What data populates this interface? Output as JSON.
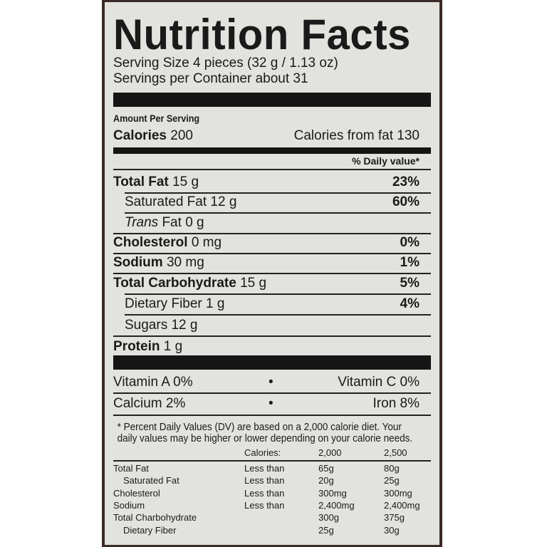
{
  "title": "Nutrition Facts",
  "serving_size": "Serving Size 4 pieces (32 g / 1.13 oz)",
  "servings_per_container": "Servings per Container about 31",
  "amount_per_serving": "Amount Per Serving",
  "calories": {
    "label": "Calories",
    "value": "200",
    "from_fat": "Calories from fat 130"
  },
  "daily_value_header": "% Daily value*",
  "nutrients": [
    {
      "label": "Total Fat",
      "amount": "15 g",
      "pct": "23%",
      "bold": true,
      "indent": false
    },
    {
      "label": "Saturated Fat",
      "amount": "12 g",
      "pct": "60%",
      "bold": false,
      "indent": true
    },
    {
      "label": "Trans",
      "label_rest": "Fat",
      "amount": "0 g",
      "pct": "",
      "bold": false,
      "indent": true,
      "italic_prefix": true
    },
    {
      "label": "Cholesterol",
      "amount": "0 mg",
      "pct": "0%",
      "bold": true,
      "indent": false
    },
    {
      "label": "Sodium",
      "amount": "30 mg",
      "pct": "1%",
      "bold": true,
      "indent": false
    },
    {
      "label": "Total Carbohydrate",
      "amount": "15 g",
      "pct": "5%",
      "bold": true,
      "indent": false
    },
    {
      "label": "Dietary Fiber",
      "amount": "1 g",
      "pct": "4%",
      "bold": false,
      "indent": true
    },
    {
      "label": "Sugars",
      "amount": "12 g",
      "pct": "",
      "bold": false,
      "indent": true
    },
    {
      "label": "Protein",
      "amount": "1 g",
      "pct": "",
      "bold": true,
      "indent": false
    }
  ],
  "vitamins": [
    {
      "left": "Vitamin A 0%",
      "sep": "•",
      "right": "Vitamin C 0%"
    },
    {
      "left": "Calcium 2%",
      "sep": "•",
      "right": "Iron 8%"
    }
  ],
  "footnote": "* Percent Daily Values (DV) are based on a 2,000 calorie diet. Your daily values may be higher or lower depending on your calorie needs.",
  "dv_table": {
    "header": [
      "",
      "Calories:",
      "2,000",
      "2,500"
    ],
    "rows": [
      [
        "Total Fat",
        "Less than",
        "65g",
        "80g"
      ],
      [
        "Saturated Fat",
        "Less than",
        "20g",
        "25g"
      ],
      [
        "Cholesterol",
        "Less than",
        "300mg",
        "300mg"
      ],
      [
        "Sodium",
        "Less than",
        "2,400mg",
        "2,400mg"
      ],
      [
        "Total Charbohydrate",
        "",
        "300g",
        "375g"
      ],
      [
        "Dietary Fiber",
        "",
        "25g",
        "30g"
      ]
    ]
  }
}
